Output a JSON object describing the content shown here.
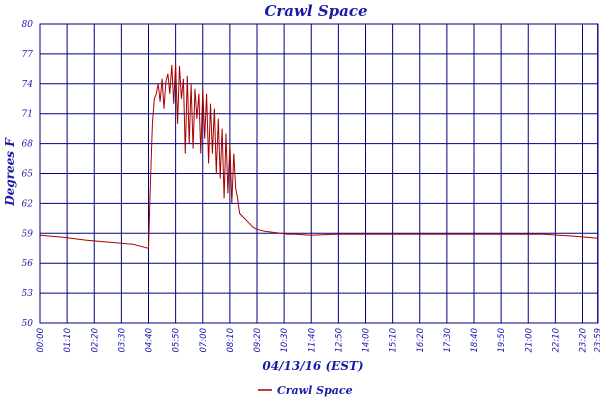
{
  "chart_data": {
    "type": "line",
    "title": "Crawl Space",
    "xlabel": "04/13/16 (EST)",
    "ylabel": "Degrees F",
    "ylim": [
      50,
      80
    ],
    "xlim": [
      0,
      1440
    ],
    "grid": true,
    "legend_position": "bottom",
    "y_ticks": [
      "50",
      "53",
      "56",
      "59",
      "62",
      "65",
      "68",
      "71",
      "74",
      "77",
      "80"
    ],
    "x_ticks": [
      "00:00",
      "01:10",
      "02:20",
      "03:30",
      "04:40",
      "05:50",
      "07:00",
      "08:10",
      "09:20",
      "10:30",
      "11:40",
      "12:50",
      "14:00",
      "15:10",
      "16:20",
      "17:30",
      "18:40",
      "19:50",
      "21:00",
      "22:10",
      "23:20",
      "23:59"
    ],
    "colors": {
      "series": "#a80000",
      "grid": "#000080",
      "text": "#1a1aa8"
    },
    "series": [
      {
        "name": "Crawl Space",
        "x_minutes": [
          0,
          60,
          120,
          180,
          240,
          270,
          280,
          285,
          290,
          295,
          300,
          305,
          310,
          315,
          320,
          325,
          330,
          335,
          340,
          345,
          350,
          355,
          360,
          365,
          370,
          375,
          380,
          385,
          390,
          395,
          400,
          405,
          410,
          415,
          420,
          425,
          430,
          435,
          440,
          445,
          450,
          455,
          460,
          465,
          470,
          475,
          480,
          485,
          490,
          495,
          500,
          505,
          510,
          515,
          520,
          525,
          530,
          535,
          540,
          545,
          550,
          555,
          560,
          570,
          580,
          600,
          620,
          640,
          660,
          700,
          760,
          800,
          840,
          900,
          1000,
          1100,
          1200,
          1300,
          1380,
          1440
        ],
        "values": [
          58.8,
          58.6,
          58.3,
          58.1,
          57.9,
          57.6,
          57.5,
          64.0,
          70.0,
          72.5,
          73.0,
          74.0,
          72.2,
          74.5,
          71.5,
          74.2,
          75.0,
          73.0,
          75.9,
          72.0,
          76.0,
          70.0,
          75.8,
          72.5,
          74.5,
          67.0,
          74.8,
          68.0,
          74.0,
          67.5,
          73.5,
          70.5,
          73.0,
          67.0,
          73.5,
          68.5,
          73.0,
          66.0,
          72.0,
          67.0,
          71.5,
          65.0,
          70.5,
          64.5,
          69.5,
          62.5,
          69.0,
          63.0,
          68.0,
          62.0,
          67.0,
          63.5,
          62.5,
          61.0,
          60.8,
          60.6,
          60.4,
          60.2,
          60.0,
          59.8,
          59.6,
          59.5,
          59.4,
          59.3,
          59.2,
          59.1,
          59.0,
          58.9,
          58.9,
          58.8,
          58.9,
          58.9,
          58.9,
          58.9,
          58.9,
          58.9,
          58.9,
          58.9,
          58.7,
          58.5
        ]
      }
    ]
  }
}
